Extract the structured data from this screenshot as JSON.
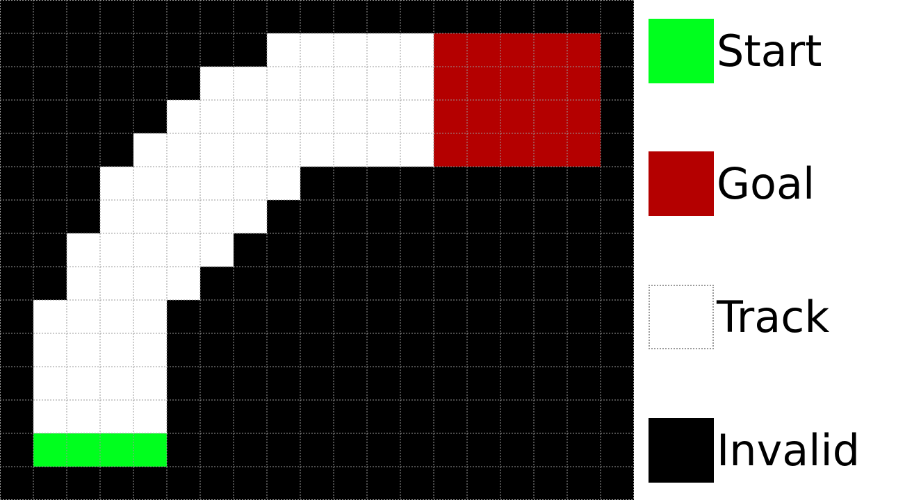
{
  "colors": {
    "start": "#00ff1e",
    "goal": "#b40000",
    "track": "#ffffff",
    "invalid": "#000000",
    "gridline": "#9a9a9a"
  },
  "grid": {
    "legend_key": {
      "S": "start",
      "G": "goal",
      "T": "track",
      "X": "invalid"
    },
    "rows": [
      "XXXXXXXXXXXXXXXXXXX",
      "XXXXXXXXTTTTTGGGGGX",
      "XXXXXXTTTTTTTGGGGGX",
      "XXXXXTTTTTTTTGGGGGX",
      "XXXXTTTTTTTTTGGGGGX",
      "XXXTTTTTTXXXXXXXXXX",
      "XXXTTTTTXXXXXXXXXXX",
      "XXTTTTTXXXXXXXXXXXX",
      "XXTTTTXXXXXXXXXXXXX",
      "XTTTTXXXXXXXXXXXXXX",
      "XTTTTXXXXXXXXXXXXXX",
      "XTTTTXXXXXXXXXXXXXX",
      "XTTTTXXXXXXXXXXXXXX",
      "XSSSSXXXXXXXXXXXXXX",
      "XXXXXXXXXXXXXXXXXXX"
    ]
  },
  "legend": [
    {
      "key": "start",
      "label": "Start"
    },
    {
      "key": "goal",
      "label": "Goal"
    },
    {
      "key": "track",
      "label": "Track"
    },
    {
      "key": "invalid",
      "label": "Invalid"
    }
  ]
}
